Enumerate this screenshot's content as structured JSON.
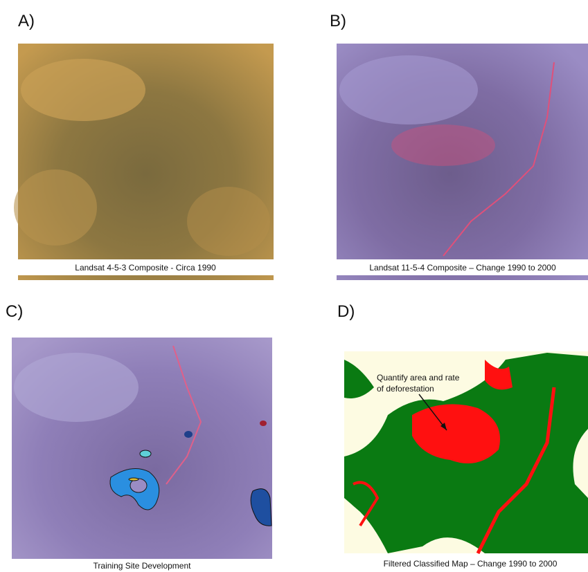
{
  "panels": [
    {
      "label": "A)",
      "caption": "Landsat 4-5-3 Composite - Circa 1990"
    },
    {
      "label": "B)",
      "caption": "Landsat 11-5-4 Composite – Change 1990 to 2000"
    },
    {
      "label": "C)",
      "caption": "Training Site Development"
    },
    {
      "label": "D)",
      "caption": "Filtered Classified Map – Change 1990 to 2000",
      "annotation": [
        "Quantify area and rate",
        "of deforestation"
      ]
    }
  ]
}
